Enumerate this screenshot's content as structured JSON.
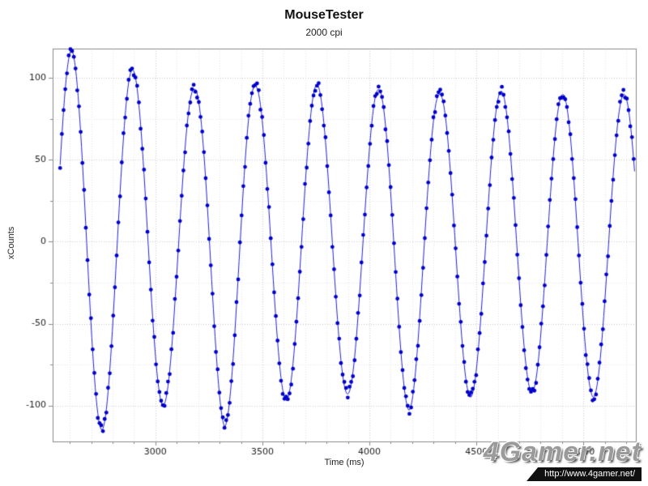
{
  "title": "MouseTester",
  "subtitle": "2000 cpi",
  "watermark": {
    "name": "4Gamer.net",
    "url": "http://www.4gamer.net/"
  },
  "chart_data": {
    "type": "scatter",
    "title": "MouseTester",
    "subtitle": "2000 cpi",
    "xlabel": "Time (ms)",
    "ylabel": "xCounts",
    "xlim": [
      2520,
      5245
    ],
    "ylim": [
      -122,
      118
    ],
    "x_major_ticks": [
      3000,
      3500,
      4000,
      4500,
      5000
    ],
    "x_minor_step": 100,
    "y_major_ticks": [
      -100,
      -50,
      0,
      50,
      100
    ],
    "y_minor_step": 25,
    "grid": {
      "major_color": "#c9c9c9",
      "minor_color": "#e4e4e4",
      "style": "dotted",
      "grid_on": true
    },
    "legend": "none",
    "series": [
      {
        "name": "xCounts",
        "color": "#0000cc",
        "line_color": "#2222cc",
        "marker_radius": 2.4,
        "sample_interval_ms": 8,
        "x_start": 2555,
        "x_end": 5242,
        "period_ms": 287,
        "phase_peak_x": 2607,
        "noise_amp": 3,
        "amplitude_envelope": [
          [
            2555,
            112
          ],
          [
            2607,
            117
          ],
          [
            2750,
            115
          ],
          [
            2894,
            105
          ],
          [
            3037,
            100
          ],
          [
            3181,
            93
          ],
          [
            3324,
            113
          ],
          [
            3468,
            95
          ],
          [
            3611,
            97
          ],
          [
            3755,
            96
          ],
          [
            3898,
            93
          ],
          [
            4042,
            93
          ],
          [
            4185,
            103
          ],
          [
            4329,
            90
          ],
          [
            4472,
            95
          ],
          [
            4616,
            92
          ],
          [
            4759,
            92
          ],
          [
            4903,
            90
          ],
          [
            5046,
            95
          ],
          [
            5190,
            90
          ],
          [
            5245,
            90
          ]
        ]
      }
    ]
  }
}
